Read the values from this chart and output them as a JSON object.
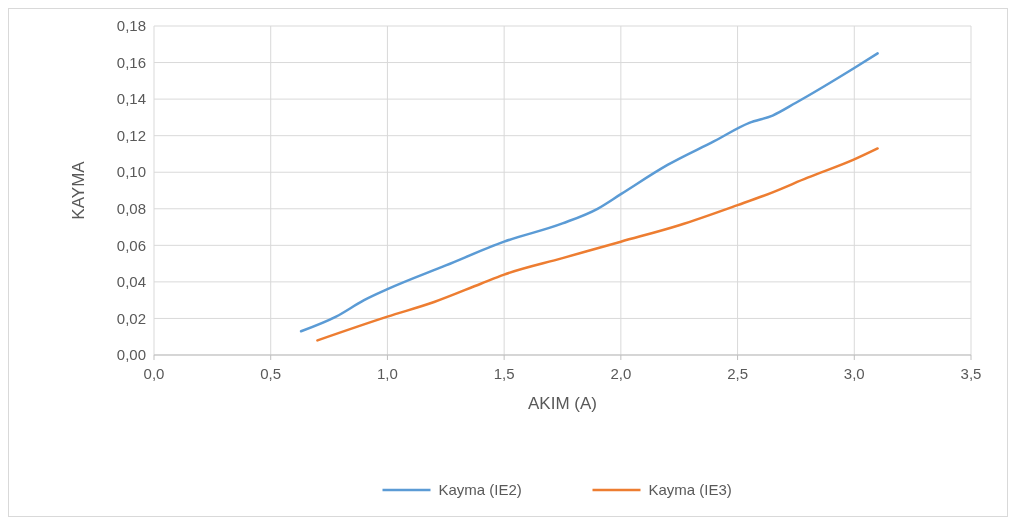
{
  "chart_data": {
    "type": "line",
    "xlabel": "AKIM (A)",
    "ylabel": "KAYMA",
    "xlim": [
      0,
      3.5
    ],
    "xticks": [
      {
        "value": 0,
        "label": "0,0"
      },
      {
        "value": 0.5,
        "label": "0,5"
      },
      {
        "value": 1,
        "label": "1,0"
      },
      {
        "value": 1.5,
        "label": "1,5"
      },
      {
        "value": 2,
        "label": "2,0"
      },
      {
        "value": 2.5,
        "label": "2,5"
      },
      {
        "value": 3,
        "label": "3,0"
      },
      {
        "value": 3.5,
        "label": "3,5"
      }
    ],
    "ylim": [
      0,
      0.18
    ],
    "yticks": [
      {
        "value": 0,
        "label": "0,00"
      },
      {
        "value": 0.02,
        "label": "0,02"
      },
      {
        "value": 0.04,
        "label": "0,04"
      },
      {
        "value": 0.06,
        "label": "0,06"
      },
      {
        "value": 0.08,
        "label": "0,08"
      },
      {
        "value": 0.1,
        "label": "0,10"
      },
      {
        "value": 0.12,
        "label": "0,12"
      },
      {
        "value": 0.14,
        "label": "0,14"
      },
      {
        "value": 0.16,
        "label": "0,16"
      },
      {
        "value": 0.18,
        "label": "0,18"
      }
    ],
    "grid": true,
    "legend": "bottom",
    "marker": "none",
    "line_style": "solid",
    "series": [
      {
        "name": "Kayma (IE2)",
        "color": "#5b9bd5",
        "x": [
          0.63,
          0.78,
          0.9,
          1.0,
          1.25,
          1.5,
          1.75,
          1.9,
          2.0,
          2.2,
          2.4,
          2.55,
          2.65,
          2.75,
          3.0,
          3.1
        ],
        "values": [
          0.013,
          0.021,
          0.03,
          0.036,
          0.049,
          0.062,
          0.072,
          0.08,
          0.088,
          0.104,
          0.117,
          0.127,
          0.131,
          0.138,
          0.157,
          0.165
        ]
      },
      {
        "name": "Kayma (IE3)",
        "color": "#ed7d31",
        "x": [
          0.7,
          1.0,
          1.2,
          1.4,
          1.5,
          1.75,
          2.0,
          2.25,
          2.5,
          2.65,
          2.8,
          3.0,
          3.1
        ],
        "values": [
          0.008,
          0.021,
          0.029,
          0.039,
          0.044,
          0.053,
          0.062,
          0.071,
          0.082,
          0.089,
          0.097,
          0.107,
          0.113
        ]
      }
    ]
  }
}
